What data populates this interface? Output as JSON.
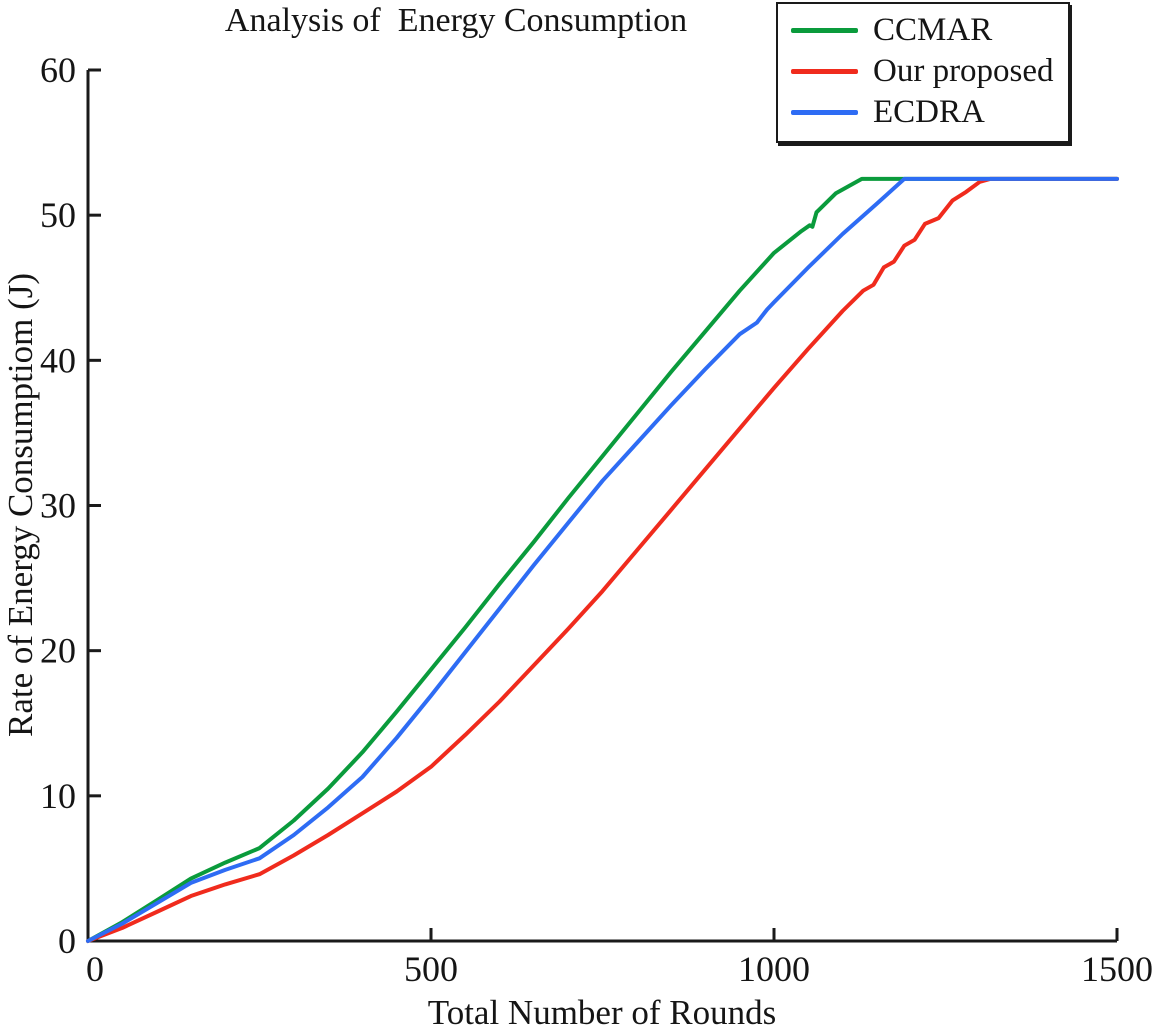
{
  "figure": {
    "background": "#ffffff"
  },
  "chart_data": {
    "type": "line",
    "title": "Analysis of  Energy Consumption",
    "xlabel": "Total Number of Rounds",
    "ylabel": "Rate of Energy Consumptiom (J)",
    "xlim": [
      0,
      1500
    ],
    "ylim": [
      0,
      60
    ],
    "xticks": [
      0,
      500,
      1000,
      1500
    ],
    "yticks": [
      0,
      10,
      20,
      30,
      40,
      50,
      60
    ],
    "grid": false,
    "legend_position": "top-right",
    "axis_color": "#1a1a1a",
    "text_color": "#151515",
    "saturation_value": 52.5,
    "series": [
      {
        "name": "CCMAR",
        "color": "#0a9b3c",
        "points": [
          [
            0,
            0
          ],
          [
            50,
            1.3
          ],
          [
            100,
            2.8
          ],
          [
            150,
            4.3
          ],
          [
            200,
            5.4
          ],
          [
            250,
            6.4
          ],
          [
            300,
            8.3
          ],
          [
            350,
            10.5
          ],
          [
            400,
            13.0
          ],
          [
            450,
            15.8
          ],
          [
            500,
            18.7
          ],
          [
            550,
            21.6
          ],
          [
            600,
            24.6
          ],
          [
            650,
            27.5
          ],
          [
            700,
            30.5
          ],
          [
            750,
            33.4
          ],
          [
            800,
            36.3
          ],
          [
            850,
            39.2
          ],
          [
            900,
            42.0
          ],
          [
            950,
            44.8
          ],
          [
            1000,
            47.4
          ],
          [
            1040,
            48.9
          ],
          [
            1052,
            49.3
          ],
          [
            1056,
            49.2
          ],
          [
            1062,
            50.2
          ],
          [
            1090,
            51.5
          ],
          [
            1128,
            52.5
          ],
          [
            1200,
            52.5
          ],
          [
            1300,
            52.5
          ],
          [
            1400,
            52.5
          ],
          [
            1500,
            52.5
          ]
        ]
      },
      {
        "name": "Our proposed",
        "color": "#f02b1d",
        "points": [
          [
            0,
            0
          ],
          [
            50,
            0.9
          ],
          [
            100,
            2.0
          ],
          [
            150,
            3.1
          ],
          [
            200,
            3.9
          ],
          [
            250,
            4.6
          ],
          [
            300,
            5.9
          ],
          [
            350,
            7.3
          ],
          [
            400,
            8.8
          ],
          [
            450,
            10.3
          ],
          [
            500,
            12.0
          ],
          [
            550,
            14.2
          ],
          [
            600,
            16.5
          ],
          [
            650,
            19.0
          ],
          [
            700,
            21.5
          ],
          [
            750,
            24.1
          ],
          [
            800,
            26.9
          ],
          [
            850,
            29.7
          ],
          [
            900,
            32.5
          ],
          [
            950,
            35.3
          ],
          [
            1000,
            38.1
          ],
          [
            1050,
            40.8
          ],
          [
            1100,
            43.4
          ],
          [
            1130,
            44.8
          ],
          [
            1145,
            45.2
          ],
          [
            1160,
            46.4
          ],
          [
            1175,
            46.8
          ],
          [
            1190,
            47.9
          ],
          [
            1205,
            48.3
          ],
          [
            1220,
            49.4
          ],
          [
            1240,
            49.8
          ],
          [
            1260,
            51.0
          ],
          [
            1280,
            51.6
          ],
          [
            1300,
            52.3
          ],
          [
            1315,
            52.5
          ],
          [
            1400,
            52.5
          ],
          [
            1500,
            52.5
          ]
        ]
      },
      {
        "name": "ECDRA",
        "color": "#2e6cf4",
        "points": [
          [
            0,
            0
          ],
          [
            50,
            1.2
          ],
          [
            100,
            2.6
          ],
          [
            150,
            4.0
          ],
          [
            200,
            4.9
          ],
          [
            250,
            5.7
          ],
          [
            300,
            7.3
          ],
          [
            350,
            9.2
          ],
          [
            400,
            11.3
          ],
          [
            450,
            14.0
          ],
          [
            500,
            16.9
          ],
          [
            550,
            19.9
          ],
          [
            600,
            22.9
          ],
          [
            650,
            25.9
          ],
          [
            700,
            28.8
          ],
          [
            750,
            31.7
          ],
          [
            800,
            34.3
          ],
          [
            850,
            36.9
          ],
          [
            900,
            39.4
          ],
          [
            950,
            41.8
          ],
          [
            975,
            42.6
          ],
          [
            990,
            43.5
          ],
          [
            1000,
            44.0
          ],
          [
            1050,
            46.4
          ],
          [
            1100,
            48.7
          ],
          [
            1150,
            50.8
          ],
          [
            1190,
            52.5
          ],
          [
            1300,
            52.5
          ],
          [
            1400,
            52.5
          ],
          [
            1500,
            52.5
          ]
        ]
      }
    ]
  }
}
